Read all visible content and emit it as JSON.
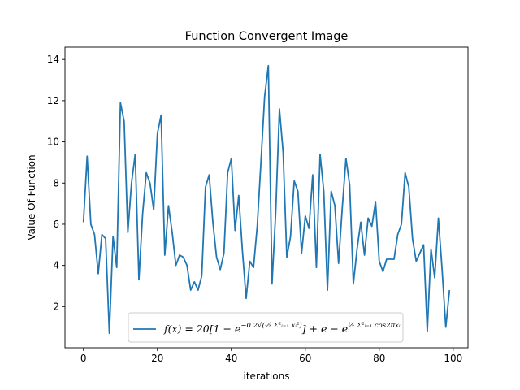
{
  "chart_data": {
    "type": "line",
    "title": "Function Convergent Image",
    "xlabel": "iterations",
    "ylabel": "Value Of Function",
    "xlim": [
      -5,
      104
    ],
    "ylim": [
      0.0,
      14.6
    ],
    "xticks": [
      0,
      20,
      40,
      60,
      80,
      100
    ],
    "yticks": [
      2,
      4,
      6,
      8,
      10,
      12,
      14
    ],
    "grid": false,
    "legend_placement": "bottom-center",
    "series": [
      {
        "name": "f(x) = 20[1 − e^(−0.2√(½ Σ²ᵢ₌₁ xᵢ²))] + e − e^(½ Σ²ᵢ₌₁ cos2πxᵢ)",
        "color": "#1f77b4",
        "x": [
          0,
          1,
          2,
          3,
          4,
          5,
          6,
          7,
          8,
          9,
          10,
          11,
          12,
          13,
          14,
          15,
          16,
          17,
          18,
          19,
          20,
          21,
          22,
          23,
          24,
          25,
          26,
          27,
          28,
          29,
          30,
          31,
          32,
          33,
          34,
          35,
          36,
          37,
          38,
          39,
          40,
          41,
          42,
          43,
          44,
          45,
          46,
          47,
          48,
          49,
          50,
          51,
          52,
          53,
          54,
          55,
          56,
          57,
          58,
          59,
          60,
          61,
          62,
          63,
          64,
          65,
          66,
          67,
          68,
          69,
          70,
          71,
          72,
          73,
          74,
          75,
          76,
          77,
          78,
          79,
          80,
          81,
          82,
          83,
          84,
          85,
          86,
          87,
          88,
          89,
          90,
          91,
          92,
          93,
          94,
          95,
          96,
          97,
          98,
          99
        ],
        "values": [
          6.1,
          9.3,
          6.0,
          5.5,
          3.6,
          5.5,
          5.3,
          0.7,
          5.4,
          3.9,
          11.9,
          11.0,
          5.6,
          8.0,
          9.4,
          3.3,
          6.5,
          8.5,
          8.0,
          6.7,
          10.4,
          11.3,
          4.5,
          6.9,
          5.6,
          4.0,
          4.5,
          4.4,
          4.0,
          2.8,
          3.2,
          2.8,
          3.5,
          7.8,
          8.4,
          6.1,
          4.4,
          3.8,
          4.6,
          8.5,
          9.2,
          5.7,
          7.4,
          4.7,
          2.4,
          4.2,
          3.9,
          5.9,
          9.0,
          12.2,
          13.7,
          3.1,
          6.6,
          11.6,
          9.5,
          4.4,
          5.4,
          8.1,
          7.6,
          4.6,
          6.4,
          5.8,
          8.4,
          3.9,
          9.4,
          7.6,
          2.8,
          7.6,
          6.9,
          4.1,
          6.8,
          9.2,
          7.9,
          3.1,
          4.8,
          6.1,
          4.5,
          6.3,
          5.9,
          7.1,
          4.2,
          3.7,
          4.3,
          4.3,
          4.3,
          5.5,
          6.0,
          8.5,
          7.8,
          5.3,
          4.2,
          4.6,
          5.0,
          0.8,
          4.8,
          3.4,
          6.3,
          3.8,
          1.0,
          2.8
        ]
      }
    ]
  }
}
